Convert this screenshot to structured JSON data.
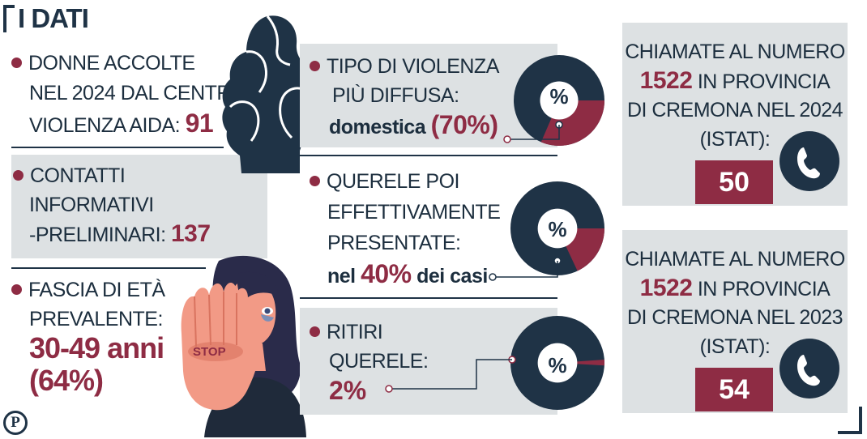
{
  "header": {
    "title": "I DATI"
  },
  "left": {
    "women": {
      "line1": "DONNE ACCOLTE",
      "line2": "NEL 2024 DAL CENTRO",
      "line3": "VIOLENZA AIDA:",
      "value": "91"
    },
    "contacts": {
      "line1": "CONTATTI",
      "line2": "INFORMATIVI",
      "line3": "-PRELIMINARI:",
      "value": "137"
    },
    "age": {
      "line1": "FASCIA DI ETÀ",
      "line2": "PREVALENTE:",
      "value1": "30-49 anni",
      "value2": "(64%)"
    }
  },
  "middle": {
    "violence": {
      "line1": "TIPO DI VIOLENZA",
      "line2": "PIÙ DIFFUSA:",
      "label": "domestica",
      "value": "(70%)",
      "percent": 70,
      "pie_label": "%"
    },
    "complaints": {
      "line1": "QUERELE POI",
      "line2": "EFFETTIVAMENTE",
      "line3": "PRESENTATE:",
      "prefix": "nel",
      "value": "40%",
      "suffix": "dei casi",
      "percent": 40,
      "pie_label": "%"
    },
    "withdrawals": {
      "line1": "RITIRI",
      "line2": "QUERELE:",
      "value": "2%",
      "percent": 2,
      "pie_label": "%"
    }
  },
  "right": {
    "calls2024": {
      "line1": "CHIAMATE AL NUMERO",
      "number": "1522",
      "line2rest": "IN PROVINCIA",
      "line3": "DI CREMONA NEL 2024",
      "line4": "(ISTAT):",
      "value": "50"
    },
    "calls2023": {
      "line1": "CHIAMATE AL NUMERO",
      "number": "1522",
      "line2rest": "IN PROVINCIA",
      "line3": "DI CREMONA NEL 2023",
      "line4": "(ISTAT):",
      "value": "54"
    }
  },
  "illustration": {
    "stop_text": "STOP"
  },
  "logo": {
    "letter": "P"
  },
  "colors": {
    "navy": "#1f3346",
    "burgundy": "#8e2c44",
    "panel": "#dde1e3",
    "skin": "#f29a86"
  },
  "icons": [
    "phone-icon",
    "bullet-dot-icon",
    "women-silhouettes-icon",
    "stop-woman-illustration"
  ]
}
